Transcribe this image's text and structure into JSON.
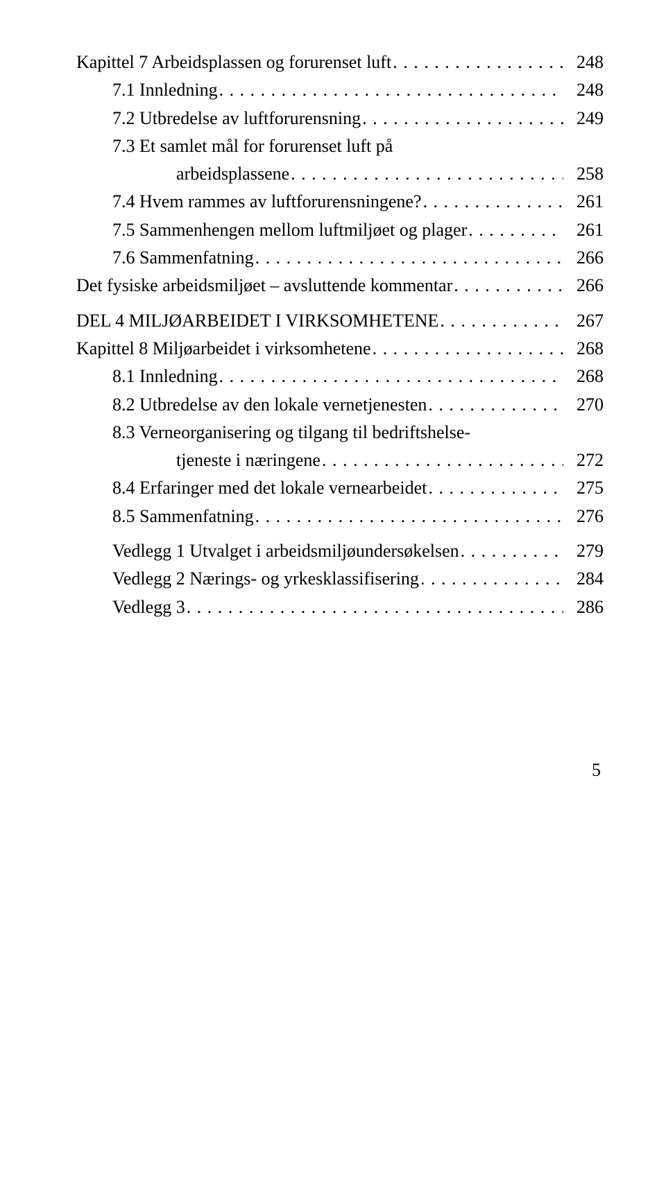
{
  "toc": {
    "entries": [
      {
        "text": "Kapittel 7 Arbeidsplassen og forurenset luft",
        "page": "248",
        "indent": 0
      },
      {
        "text": "7.1 Innledning",
        "page": "248",
        "indent": 1
      },
      {
        "text": "7.2 Utbredelse av luftforurensning",
        "page": "249",
        "indent": 1
      },
      {
        "text": "7.3 Et samlet mål for forurenset luft på",
        "page": "",
        "indent": 1,
        "nodots": true
      },
      {
        "text": "arbeidsplassene",
        "page": "258",
        "indent": 2
      },
      {
        "text": "7.4 Hvem rammes av luftforurensningene?",
        "page": "261",
        "indent": 1
      },
      {
        "text": "7.5 Sammenhengen mellom luftmiljøet og plager",
        "page": "261",
        "indent": 1
      },
      {
        "text": "7.6 Sammenfatning",
        "page": "266",
        "indent": 1
      },
      {
        "text": "Det fysiske arbeidsmiljøet – avsluttende kommentar",
        "page": "266",
        "indent": 0
      },
      {
        "spacer": true
      },
      {
        "text": "DEL 4 MILJØARBEIDET I VIRKSOMHETENE",
        "page": "267",
        "indent": 0
      },
      {
        "text": "Kapittel 8 Miljøarbeidet i virksomhetene",
        "page": "268",
        "indent": 0
      },
      {
        "text": "8.1 Innledning",
        "page": "268",
        "indent": 1
      },
      {
        "text": "8.2 Utbredelse av den lokale vernetjenesten",
        "page": "270",
        "indent": 1
      },
      {
        "text": "8.3 Verneorganisering og tilgang til bedriftshelse-",
        "page": "",
        "indent": 1,
        "nodots": true
      },
      {
        "text": "tjeneste i næringene",
        "page": "272",
        "indent": 2
      },
      {
        "text": "8.4 Erfaringer med det lokale vernearbeidet",
        "page": "275",
        "indent": 1
      },
      {
        "text": "8.5 Sammenfatning",
        "page": "276",
        "indent": 1
      },
      {
        "spacer": true
      },
      {
        "text": "Vedlegg 1 Utvalget i arbeidsmiljøundersøkelsen",
        "page": "279",
        "indent": 1
      },
      {
        "text": "Vedlegg 2 Nærings- og yrkesklassifisering",
        "page": "284",
        "indent": 1
      },
      {
        "text": "Vedlegg 3",
        "page": "286",
        "indent": 1
      }
    ]
  },
  "page_number": "5"
}
